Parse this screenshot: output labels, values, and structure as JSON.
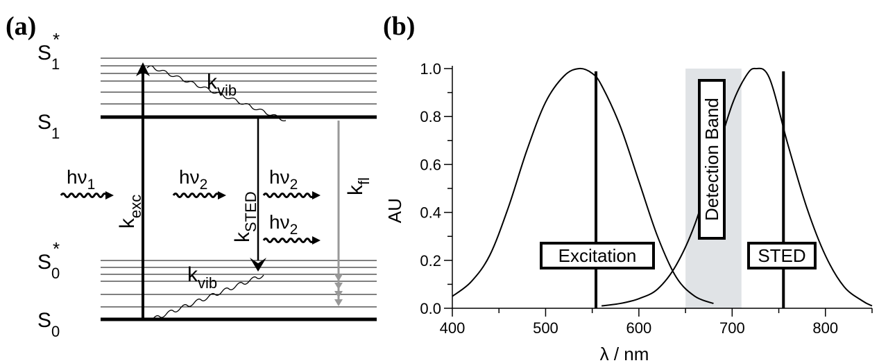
{
  "panel_a": {
    "letter": "(a)",
    "states": {
      "s1_star": {
        "base": "S",
        "sub": "1",
        "sup": "*"
      },
      "s1": {
        "base": "S",
        "sub": "1"
      },
      "s0_star": {
        "base": "S",
        "sub": "0",
        "sup": "*"
      },
      "s0": {
        "base": "S",
        "sub": "0"
      }
    },
    "rates": {
      "kexc": {
        "base": "k",
        "sub": "exc"
      },
      "ksted": {
        "base": "k",
        "sub": "STED"
      },
      "kfl": {
        "base": "k",
        "sub": "fl"
      },
      "kvib_top": {
        "base": "k",
        "sub": "vib"
      },
      "kvib_bottom": {
        "base": "k",
        "sub": "vib"
      }
    },
    "photons": {
      "hv1": {
        "base": "hν",
        "sub": "1"
      },
      "hv2_in": {
        "base": "hν",
        "sub": "2"
      },
      "hv2_out_a": {
        "base": "hν",
        "sub": "2"
      },
      "hv2_out_b": {
        "base": "hν",
        "sub": "2"
      }
    },
    "colors": {
      "line": "#000000",
      "fluorescence": "#999999"
    }
  },
  "panel_b": {
    "letter": "(b)",
    "chart_data": {
      "type": "line",
      "xlabel": "λ / nm",
      "ylabel": "AU",
      "xlim": [
        400,
        850
      ],
      "ylim": [
        0,
        1.0
      ],
      "xticks": [
        400,
        500,
        600,
        700,
        800
      ],
      "yticks": [
        "0.0",
        "0.2",
        "0.4",
        "0.6",
        "0.8",
        "1.0"
      ],
      "series": [
        {
          "x": [
            400,
            420,
            440,
            460,
            480,
            500,
            520,
            536,
            550,
            560,
            580,
            600,
            620,
            640,
            660,
            680
          ],
          "y": [
            0.05,
            0.11,
            0.22,
            0.42,
            0.66,
            0.86,
            0.97,
            1.0,
            0.98,
            0.93,
            0.76,
            0.53,
            0.3,
            0.13,
            0.05,
            0.02
          ]
        },
        {
          "x": [
            560,
            580,
            600,
            620,
            640,
            660,
            680,
            700,
            715,
            725,
            740,
            760,
            780,
            800,
            820,
            840,
            850
          ],
          "y": [
            0.01,
            0.02,
            0.04,
            0.08,
            0.18,
            0.35,
            0.6,
            0.85,
            0.97,
            1.0,
            0.96,
            0.68,
            0.42,
            0.22,
            0.09,
            0.03,
            0.01
          ]
        }
      ],
      "vlines": [
        {
          "label": "Excitation",
          "x": 554
        },
        {
          "label": "STED",
          "x": 755
        }
      ],
      "band": {
        "label": "Detection Band",
        "x": [
          650,
          710
        ],
        "color": "#e0e3e6"
      },
      "grid": false,
      "line_color": "#000000"
    }
  }
}
